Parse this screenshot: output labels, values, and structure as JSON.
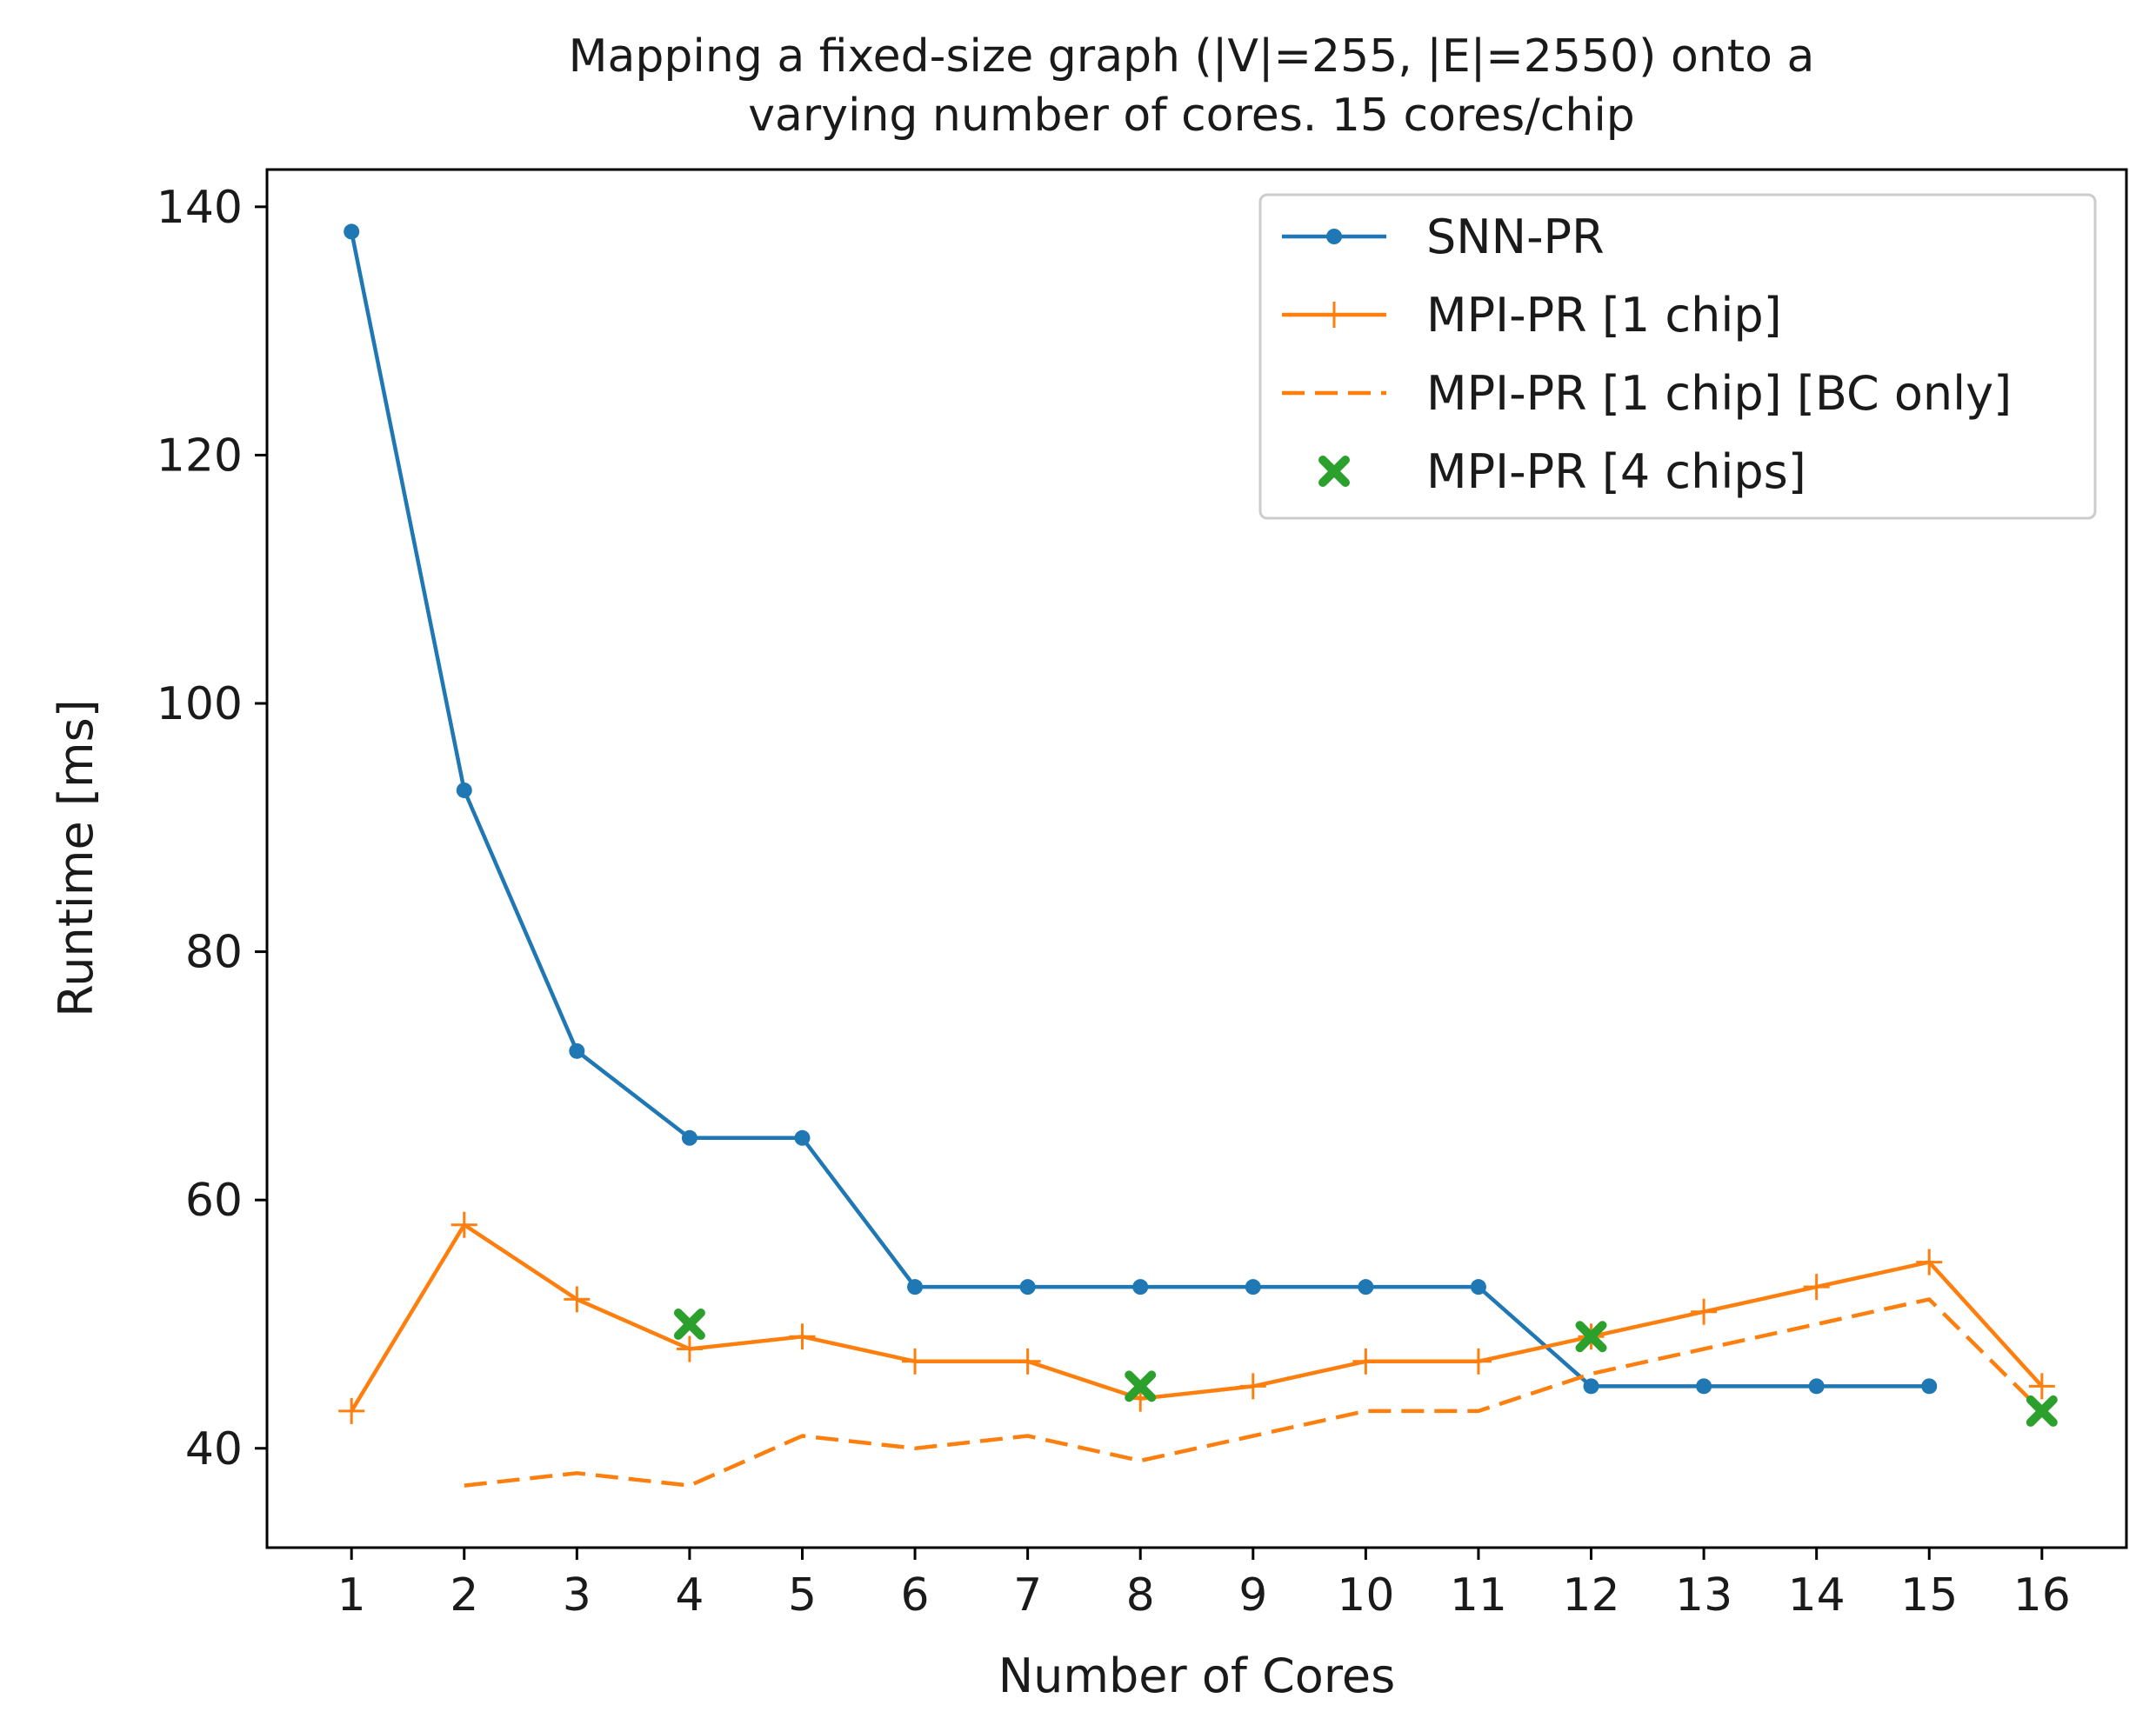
{
  "chart_data": {
    "type": "line",
    "title": "Mapping a fixed-size graph (|V|=255, |E|=2550) onto a",
    "subtitle": "varying number of cores. 15 cores/chip",
    "xlabel": "Number of Cores",
    "ylabel": "Runtime [ms]",
    "xlim": [
      0.25,
      16.75
    ],
    "ylim": [
      32,
      143
    ],
    "x_ticks": [
      1,
      2,
      3,
      4,
      5,
      6,
      7,
      8,
      9,
      10,
      11,
      12,
      13,
      14,
      15,
      16
    ],
    "y_ticks": [
      40,
      60,
      80,
      100,
      120,
      140
    ],
    "grid": false,
    "legend_position": "top-right",
    "series": [
      {
        "name": "SNN-PR",
        "color": "#1f77b4",
        "style": "solid",
        "marker": "dot",
        "x": [
          1,
          2,
          3,
          4,
          5,
          6,
          7,
          8,
          9,
          10,
          11,
          12,
          13,
          14,
          15
        ],
        "y": [
          138,
          93,
          72,
          65,
          65,
          53,
          53,
          53,
          53,
          53,
          53,
          45,
          45,
          45,
          45
        ]
      },
      {
        "name": "MPI-PR [1 chip]",
        "color": "#ff7f0e",
        "style": "solid",
        "marker": "plus",
        "x": [
          1,
          2,
          3,
          4,
          5,
          6,
          7,
          8,
          9,
          10,
          11,
          12,
          13,
          14,
          15,
          16
        ],
        "y": [
          43,
          58,
          52,
          48,
          49,
          47,
          47,
          44,
          45,
          47,
          47,
          49,
          51,
          53,
          55,
          45
        ]
      },
      {
        "name": "MPI-PR [1 chip] [BC only]",
        "color": "#ff7f0e",
        "style": "dashed",
        "marker": "none",
        "x": [
          2,
          3,
          4,
          5,
          6,
          7,
          8,
          9,
          10,
          11,
          12,
          13,
          14,
          15,
          16
        ],
        "y": [
          37,
          38,
          37,
          41,
          40,
          41,
          39,
          41,
          43,
          43,
          46,
          48,
          50,
          52,
          43
        ]
      },
      {
        "name": "MPI-PR [4 chips]",
        "color": "#2ca02c",
        "style": "none",
        "marker": "x",
        "x": [
          4,
          8,
          12,
          16
        ],
        "y": [
          50,
          45,
          49,
          43
        ]
      }
    ]
  }
}
